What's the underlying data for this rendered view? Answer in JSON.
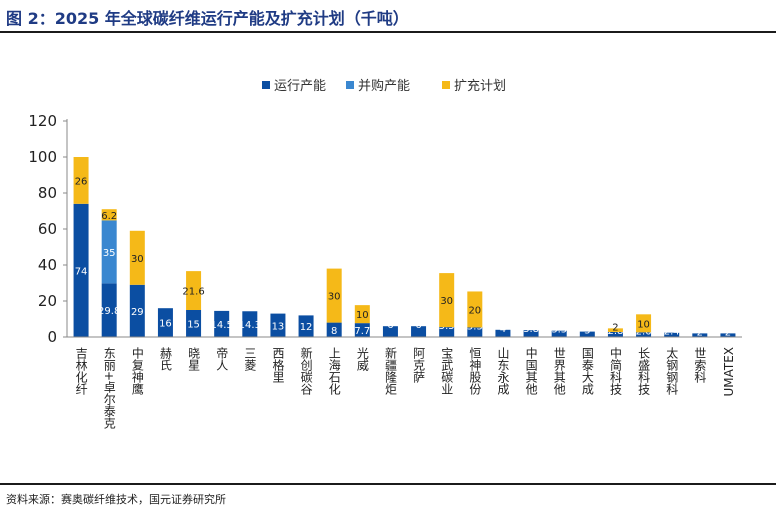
{
  "header": {
    "title": "图 2：2025 年全球碳纤维运行产能及扩充计划（千吨）"
  },
  "footer": {
    "source": "资料来源：赛奥碳纤维技术，国元证券研究所"
  },
  "chart_data": {
    "type": "bar",
    "stacked": true,
    "categories": [
      "吉林化纤",
      "东丽+卓尔泰克",
      "中复神鹰",
      "赫氏",
      "晓星",
      "帝人",
      "三菱",
      "西格里",
      "新创碳谷",
      "上海石化",
      "光威",
      "新疆隆炬",
      "阿克萨",
      "宝武碳业",
      "恒神股份",
      "山东永成",
      "中国其他",
      "世界其他",
      "国泰大成",
      "中简科技",
      "长盛科技",
      "太钢钢科",
      "世索科",
      "UMATEX"
    ],
    "series": [
      {
        "name": "运行产能",
        "color": "#0b4ea2",
        "values": [
          74,
          29.8,
          29,
          16,
          15,
          14.5,
          14.3,
          13,
          12,
          8,
          7.7,
          6,
          6,
          5.5,
          5.3,
          4,
          3.8,
          3.5,
          3,
          2.8,
          2.6,
          2.4,
          2,
          2
        ]
      },
      {
        "name": "并购产能",
        "color": "#3a87d0",
        "values": [
          0,
          35,
          0,
          0,
          0,
          0,
          0,
          0,
          0,
          0,
          0,
          0,
          0,
          0,
          0,
          0,
          0,
          0,
          0,
          0,
          0,
          0,
          0,
          0
        ]
      },
      {
        "name": "扩充计划",
        "color": "#f5b918",
        "values": [
          26,
          6.2,
          30,
          0,
          21.6,
          0,
          0,
          0,
          0,
          30,
          10,
          0,
          0,
          30,
          20,
          0,
          0,
          0,
          0,
          2,
          10,
          0,
          0,
          0
        ]
      }
    ],
    "labels": {
      "运行产能": [
        "74",
        "29.8",
        "29",
        "16",
        "15",
        "14.5",
        "14.3",
        "13",
        "12",
        "8",
        "7.7",
        "6",
        "6",
        "5.5",
        "5.3",
        "4",
        "3.8",
        "3.5",
        "3",
        "2.8",
        "2.6",
        "2.4",
        "2",
        "2"
      ],
      "并购产能": [
        "",
        "35",
        "",
        "",
        "",
        "",
        "",
        "",
        "",
        "",
        "",
        "",
        "",
        "",
        "",
        "",
        "",
        "",
        "",
        "",
        "",
        "",
        "",
        ""
      ],
      "扩充计划": [
        "26",
        "6.2",
        "30",
        "",
        "21.6",
        "",
        "",
        "",
        "",
        "30",
        "10",
        "",
        "",
        "30",
        "20",
        "",
        "",
        "",
        "",
        "2",
        "10",
        "",
        "",
        ""
      ]
    },
    "yticks": [
      "0",
      "20",
      "40",
      "60",
      "80",
      "100",
      "120"
    ],
    "ylim": [
      0,
      120
    ],
    "grid": false,
    "legend_position": "top"
  }
}
